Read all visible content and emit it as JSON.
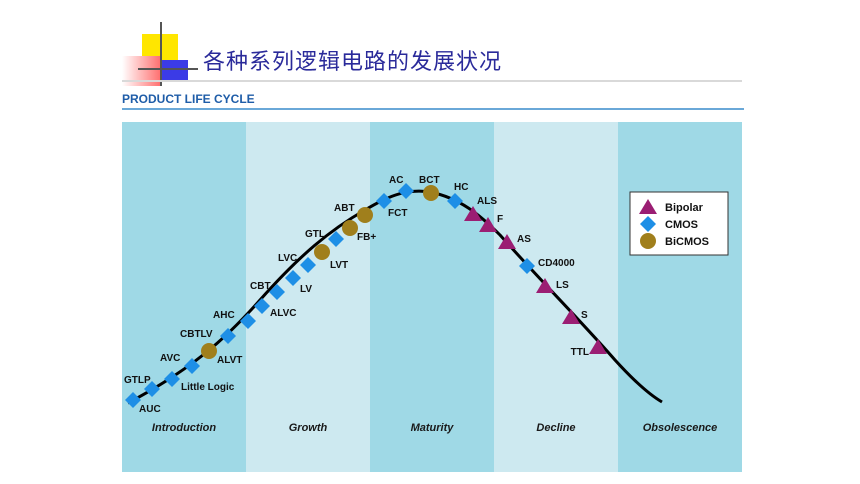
{
  "title": "各种系列逻辑电路的发展状况",
  "subtitle": "PRODUCT LIFE CYCLE",
  "colors": {
    "band_dark": "#9fd9e6",
    "band_light": "#cde9f0",
    "bipolar": "#9b1e73",
    "cmos": "#1e8fe6",
    "bicmos": "#a07f1c",
    "title_text": "#2a2a9a",
    "subtitle_text": "#1f5da8"
  },
  "chart_data": {
    "type": "diagram",
    "phases": [
      "Introduction",
      "Growth",
      "Maturity",
      "Decline",
      "Obsolescence"
    ],
    "legend": [
      {
        "name": "Bipolar",
        "shape": "triangle-icon"
      },
      {
        "name": "CMOS",
        "shape": "diamond-icon"
      },
      {
        "name": "BiCMOS",
        "shape": "circle-icon"
      }
    ],
    "families": [
      {
        "label": "AUC",
        "tech": "CMOS"
      },
      {
        "label": "GTLP",
        "tech": "CMOS"
      },
      {
        "label": "Little Logic",
        "tech": "CMOS"
      },
      {
        "label": "AVC",
        "tech": "CMOS"
      },
      {
        "label": "ALVT",
        "tech": "BiCMOS"
      },
      {
        "label": "CBTLV",
        "tech": "CMOS"
      },
      {
        "label": "AHC",
        "tech": "CMOS"
      },
      {
        "label": "ALVC",
        "tech": "CMOS"
      },
      {
        "label": "CBT",
        "tech": "CMOS"
      },
      {
        "label": "LV",
        "tech": "CMOS"
      },
      {
        "label": "LVC",
        "tech": "CMOS"
      },
      {
        "label": "LVT",
        "tech": "BiCMOS"
      },
      {
        "label": "GTL",
        "tech": "CMOS"
      },
      {
        "label": "FB+",
        "tech": "BiCMOS"
      },
      {
        "label": "ABT",
        "tech": "BiCMOS"
      },
      {
        "label": "FCT",
        "tech": "CMOS"
      },
      {
        "label": "AC",
        "tech": "CMOS"
      },
      {
        "label": "BCT",
        "tech": "BiCMOS"
      },
      {
        "label": "HC",
        "tech": "CMOS"
      },
      {
        "label": "ALS",
        "tech": "Bipolar"
      },
      {
        "label": "F",
        "tech": "Bipolar"
      },
      {
        "label": "AS",
        "tech": "Bipolar"
      },
      {
        "label": "CD4000",
        "tech": "CMOS"
      },
      {
        "label": "LS",
        "tech": "Bipolar"
      },
      {
        "label": "S",
        "tech": "Bipolar"
      },
      {
        "label": "TTL",
        "tech": "Bipolar"
      }
    ]
  }
}
